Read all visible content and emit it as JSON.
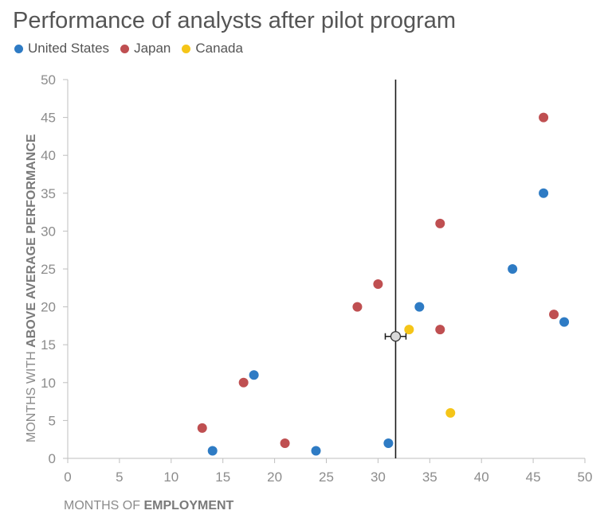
{
  "chart_data": {
    "type": "scatter",
    "title": "Performance of analysts after pilot program",
    "xlabel_prefix": "MONTHS OF ",
    "xlabel_bold": "EMPLOYMENT",
    "ylabel_prefix": "MONTHS WITH ",
    "ylabel_bold": "ABOVE AVERAGE PERFORMANCE",
    "xlim": [
      0,
      50
    ],
    "ylim": [
      0,
      50
    ],
    "x_ticks": [
      "0",
      "5",
      "10",
      "15",
      "20",
      "25",
      "30",
      "35",
      "40",
      "45",
      "50"
    ],
    "y_ticks": [
      "0",
      "5",
      "10",
      "15",
      "20",
      "25",
      "30",
      "35",
      "40",
      "45",
      "50"
    ],
    "grid": false,
    "legend_position": "top-left",
    "series": [
      {
        "name": "United States",
        "color": "#2e7bc4",
        "points": [
          [
            14,
            1
          ],
          [
            18,
            11
          ],
          [
            24,
            1
          ],
          [
            31,
            2
          ],
          [
            34,
            20
          ],
          [
            43,
            25
          ],
          [
            46,
            35
          ],
          [
            48,
            18
          ]
        ]
      },
      {
        "name": "Japan",
        "color": "#bf4f51",
        "points": [
          [
            13,
            4
          ],
          [
            17,
            10
          ],
          [
            21,
            2
          ],
          [
            28,
            20
          ],
          [
            30,
            23
          ],
          [
            36,
            31
          ],
          [
            36,
            17
          ],
          [
            46,
            45
          ],
          [
            47,
            19
          ]
        ]
      },
      {
        "name": "Canada",
        "color": "#f5c518",
        "points": [
          [
            33,
            17
          ],
          [
            37,
            6
          ]
        ]
      }
    ],
    "vertical_line": {
      "x": 31.7
    },
    "mean_marker": {
      "x": 31.7,
      "y": 16.1,
      "x_error": 1.0
    }
  }
}
